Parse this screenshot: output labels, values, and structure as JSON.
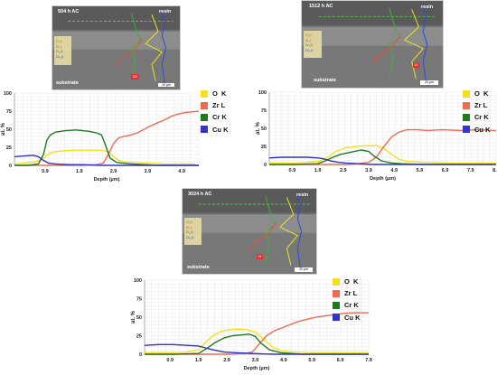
{
  "chart_data": [
    {
      "type": "line",
      "id": "a",
      "sem": {
        "condition": "504 h AC",
        "top_label": "resin",
        "bottom_label": "substrate",
        "scale": "10 µm",
        "marker": "515"
      },
      "sem_legend": [
        "O_K",
        "Zr_L",
        "Cr_K",
        "Cu_K"
      ],
      "xlabel": "Depth (µm)",
      "ylabel": "at. %",
      "xlim": [
        0,
        5.4
      ],
      "ylim": [
        0,
        100
      ],
      "x_ticks": [
        "0.9",
        "1.9",
        "2.9",
        "3.9",
        "4.9"
      ],
      "y_ticks": [
        "0",
        "25",
        "50",
        "75",
        "100"
      ],
      "legend": [
        "O  K",
        "Zr L",
        "Cr K",
        "Cu K"
      ],
      "series": [
        {
          "name": "O  K",
          "color": "#f4e11b",
          "x": [
            0,
            0.3,
            0.6,
            0.8,
            0.95,
            1.1,
            1.4,
            1.7,
            2.0,
            2.3,
            2.55,
            2.75,
            2.9,
            3.05,
            3.2,
            3.5,
            3.8,
            4.1,
            4.4,
            4.7,
            5.0,
            5.3
          ],
          "y": [
            2,
            3,
            5,
            8,
            14,
            18,
            20,
            21,
            21,
            21,
            21,
            19,
            12,
            7,
            5,
            4,
            3,
            3,
            2,
            2,
            2,
            2
          ]
        },
        {
          "name": "Zr L",
          "color": "#f06a50",
          "x": [
            0,
            0.4,
            0.8,
            1.2,
            1.6,
            2.0,
            2.4,
            2.6,
            2.75,
            2.9,
            3.05,
            3.2,
            3.4,
            3.6,
            3.8,
            4.0,
            4.2,
            4.4,
            4.6,
            4.8,
            5.0,
            5.2,
            5.4
          ],
          "y": [
            0,
            0,
            0,
            0,
            0,
            0,
            1,
            3,
            15,
            30,
            38,
            40,
            42,
            45,
            50,
            55,
            59,
            63,
            68,
            71,
            73,
            74,
            75
          ]
        },
        {
          "name": "Cr K",
          "color": "#1f7a1f",
          "x": [
            0,
            0.4,
            0.7,
            0.85,
            0.95,
            1.05,
            1.2,
            1.5,
            1.8,
            2.0,
            2.2,
            2.4,
            2.55,
            2.65,
            2.8,
            3.0,
            3.4,
            3.8,
            4.2,
            4.6,
            5.0,
            5.4
          ],
          "y": [
            0,
            0,
            2,
            15,
            35,
            42,
            46,
            48,
            49,
            48,
            47,
            45,
            42,
            30,
            10,
            4,
            2,
            1,
            0,
            0,
            0,
            0
          ]
        },
        {
          "name": "Cu K",
          "color": "#3333cc",
          "x": [
            0,
            0.3,
            0.55,
            0.7,
            0.85,
            1.0,
            1.2,
            1.6,
            2.0,
            2.5,
            3.0,
            3.5,
            4.0,
            4.5,
            5.0,
            5.4
          ],
          "y": [
            12,
            13,
            14,
            12,
            7,
            3,
            2,
            1,
            1,
            0,
            0,
            0,
            0,
            0,
            0,
            0
          ]
        }
      ]
    },
    {
      "type": "line",
      "id": "b",
      "sem": {
        "condition": "1512 h AC",
        "top_label": "resin",
        "bottom_label": "substrate",
        "scale": "20 µm",
        "marker": "24"
      },
      "sem_legend": [
        "O_K",
        "Zr_L",
        "Cr_K",
        "Cu_K"
      ],
      "xlabel": "Depth (µm)",
      "ylabel": "at. %",
      "xlim": [
        0,
        8.9
      ],
      "ylim": [
        0,
        100
      ],
      "x_ticks": [
        "0.9",
        "1.9",
        "2.9",
        "3.9",
        "4.9",
        "5.9",
        "6.9",
        "7.9",
        "8.9"
      ],
      "y_ticks": [
        "0",
        "25",
        "50",
        "75",
        "100"
      ],
      "legend": [
        "O  K",
        "Zr L",
        "Cr K",
        "Cu K"
      ],
      "series": [
        {
          "name": "O  K",
          "color": "#f4e11b",
          "x": [
            0,
            0.5,
            1.0,
            1.5,
            2.0,
            2.3,
            2.6,
            3.0,
            3.4,
            3.8,
            4.2,
            4.5,
            4.8,
            5.1,
            5.5,
            6.0,
            7.0,
            8.0,
            8.9
          ],
          "y": [
            2,
            2,
            2,
            3,
            5,
            10,
            18,
            23,
            25,
            26,
            26,
            22,
            14,
            7,
            4,
            3,
            2,
            2,
            2
          ]
        },
        {
          "name": "Zr L",
          "color": "#f06a50",
          "x": [
            0,
            0.5,
            1.0,
            1.5,
            2.0,
            2.5,
            3.0,
            3.5,
            3.9,
            4.2,
            4.5,
            4.8,
            5.1,
            5.4,
            5.8,
            6.2,
            6.8,
            7.5,
            8.2,
            8.9
          ],
          "y": [
            0,
            0,
            0,
            0,
            0,
            0,
            0,
            1,
            3,
            10,
            25,
            38,
            45,
            48,
            48,
            47,
            48,
            47,
            48,
            47
          ]
        },
        {
          "name": "Cr K",
          "color": "#1f7a1f",
          "x": [
            0,
            1.0,
            1.9,
            2.2,
            2.5,
            2.8,
            3.2,
            3.6,
            3.9,
            4.1,
            4.4,
            4.8,
            5.2,
            6.0,
            7.0,
            8.9
          ],
          "y": [
            0,
            0,
            1,
            5,
            10,
            14,
            17,
            20,
            18,
            12,
            5,
            2,
            1,
            0,
            0,
            0
          ]
        },
        {
          "name": "Cu K",
          "color": "#3333cc",
          "x": [
            0,
            0.5,
            1.0,
            1.5,
            1.9,
            2.1,
            2.4,
            2.7,
            3.0,
            3.5,
            4.0,
            5.0,
            6.0,
            7.0,
            8.9
          ],
          "y": [
            9,
            10,
            10,
            10,
            9,
            8,
            5,
            3,
            2,
            1,
            0,
            0,
            0,
            0,
            0
          ]
        }
      ]
    },
    {
      "type": "line",
      "id": "c",
      "sem": {
        "condition": "3024 h AC",
        "top_label": "resin",
        "bottom_label": "substrate",
        "scale": "20 µm",
        "marker": "24"
      },
      "sem_legend": [
        "O_K",
        "Zr_L",
        "Cr_K",
        "Cu_K"
      ],
      "xlabel": "Depth (µm)",
      "ylabel": "at. %",
      "xlim": [
        0,
        7.9
      ],
      "ylim": [
        0,
        100
      ],
      "x_ticks": [
        "0.9",
        "1.9",
        "2.9",
        "3.9",
        "4.9",
        "5.9",
        "6.9",
        "7.9"
      ],
      "y_ticks": [
        "0",
        "25",
        "50",
        "75",
        "100"
      ],
      "legend": [
        "O  K",
        "Zr L",
        "Cr K",
        "Cu K"
      ],
      "series": [
        {
          "name": "O  K",
          "color": "#f4e11b",
          "x": [
            0,
            0.5,
            1.0,
            1.5,
            1.9,
            2.1,
            2.4,
            2.7,
            3.0,
            3.3,
            3.6,
            3.9,
            4.2,
            4.5,
            4.8,
            5.2,
            6.0,
            7.0,
            7.9
          ],
          "y": [
            2,
            2,
            2,
            3,
            6,
            14,
            25,
            31,
            33,
            34,
            33,
            30,
            20,
            10,
            5,
            3,
            2,
            2,
            2
          ]
        },
        {
          "name": "Zr L",
          "color": "#f06a50",
          "x": [
            0,
            1.0,
            2.0,
            3.0,
            3.5,
            3.8,
            4.0,
            4.3,
            4.6,
            5.0,
            5.4,
            5.8,
            6.2,
            6.6,
            7.0,
            7.4,
            7.9
          ],
          "y": [
            0,
            0,
            0,
            0,
            1,
            3,
            12,
            25,
            32,
            38,
            44,
            48,
            51,
            53,
            55,
            56,
            56
          ]
        },
        {
          "name": "Cr K",
          "color": "#1f7a1f",
          "x": [
            0,
            1.0,
            1.9,
            2.2,
            2.5,
            2.8,
            3.1,
            3.4,
            3.7,
            3.9,
            4.1,
            4.4,
            4.8,
            5.5,
            7.9
          ],
          "y": [
            0,
            0,
            1,
            8,
            16,
            22,
            25,
            26,
            27,
            24,
            15,
            6,
            2,
            0,
            0
          ]
        },
        {
          "name": "Cu K",
          "color": "#3333cc",
          "x": [
            0,
            0.5,
            1.0,
            1.5,
            1.9,
            2.1,
            2.4,
            2.8,
            3.2,
            3.8,
            4.5,
            5.5,
            7.9
          ],
          "y": [
            12,
            13,
            13,
            12,
            11,
            9,
            6,
            3,
            2,
            1,
            0,
            0,
            0
          ]
        }
      ]
    }
  ]
}
